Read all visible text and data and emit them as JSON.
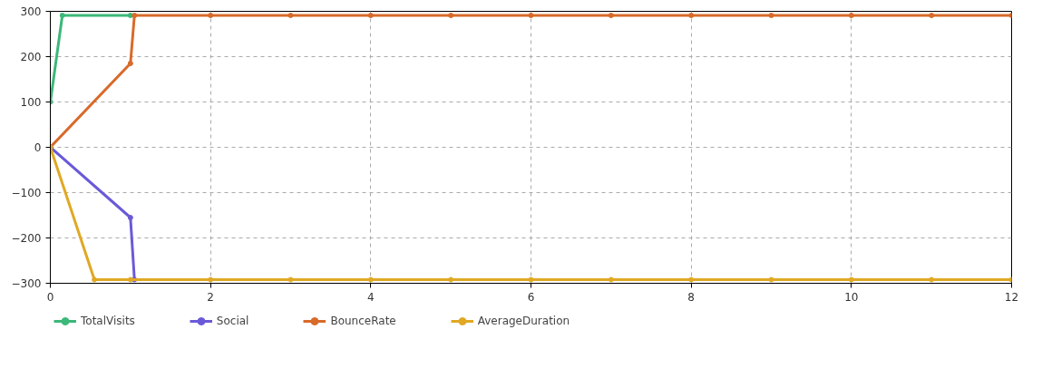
{
  "chart_data": {
    "type": "line",
    "xlim": [
      0,
      12
    ],
    "ylim": [
      -300,
      300
    ],
    "xticks": [
      0,
      2,
      4,
      6,
      8,
      10,
      12
    ],
    "yticks": [
      -300,
      -200,
      -100,
      0,
      100,
      200,
      300
    ],
    "grid": true,
    "legend": "bottom",
    "marker": "circle",
    "line_style": "solid",
    "series": [
      {
        "name": "TotalVisits",
        "color": "#3cb878",
        "x": [
          0,
          0.15,
          1
        ],
        "values": [
          100,
          291,
          291
        ]
      },
      {
        "name": "Social",
        "color": "#6a5ad8",
        "x": [
          0,
          1,
          1.05
        ],
        "values": [
          0,
          -155,
          -292
        ]
      },
      {
        "name": "BounceRate",
        "color": "#d86a2a",
        "x": [
          0,
          1,
          1.05,
          2,
          3,
          4,
          5,
          6,
          7,
          8,
          9,
          10,
          11,
          12
        ],
        "values": [
          0,
          185,
          291,
          291,
          291,
          291,
          291,
          291,
          291,
          291,
          291,
          291,
          291,
          291
        ]
      },
      {
        "name": "AverageDuration",
        "color": "#e0a824",
        "x": [
          0,
          0.55,
          1,
          2,
          3,
          4,
          5,
          6,
          7,
          8,
          9,
          10,
          11,
          12
        ],
        "values": [
          0,
          -292,
          -292,
          -292,
          -292,
          -292,
          -292,
          -292,
          -292,
          -292,
          -292,
          -292,
          -292,
          -292
        ]
      }
    ]
  }
}
